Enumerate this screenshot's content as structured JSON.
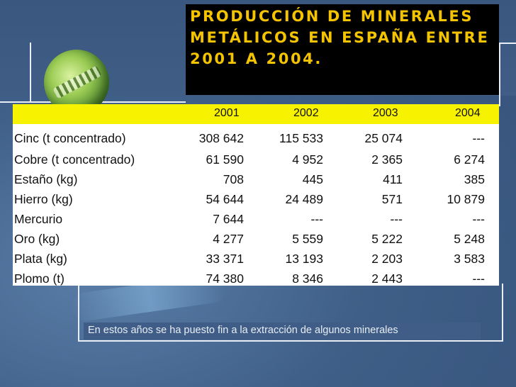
{
  "title": "PRODUCCIÓN DE MINERALES METÁLICOS EN ESPAÑA ENTRE 2001 A 2004.",
  "table": {
    "headers": [
      "2001",
      "2002",
      "2003",
      "2004"
    ],
    "rows": [
      {
        "label": "Cinc (t concentrado)",
        "values": [
          "308 642",
          "115 533",
          "25 074",
          "---"
        ]
      },
      {
        "label": "Cobre (t concentrado)",
        "values": [
          "61 590",
          "4 952",
          "2 365",
          "6 274"
        ]
      },
      {
        "label": "Estaño (kg)",
        "values": [
          "708",
          "445",
          "411",
          "385"
        ]
      },
      {
        "label": "Hierro (kg)",
        "values": [
          "54 644",
          "24 489",
          "571",
          "10 879"
        ]
      },
      {
        "label": "Mercurio",
        "values": [
          "7 644",
          "---",
          "---",
          "---"
        ]
      },
      {
        "label": "Oro (kg)",
        "values": [
          "4 277",
          "5 559",
          "5 222",
          "5 248"
        ]
      },
      {
        "label": "Plata (kg)",
        "values": [
          "33 371",
          "13 193",
          "2 203",
          "3 583"
        ]
      },
      {
        "label": "Plomo (t)",
        "values": [
          "74 380",
          "8 346",
          "2 443",
          "---"
        ]
      }
    ]
  },
  "caption": "En estos años se ha puesto fin a la extracción de algunos minerales",
  "colors": {
    "title_text": "#f4c400",
    "title_bg": "#000000",
    "header_bg": "#f6f200",
    "background": "#3c5a82"
  }
}
